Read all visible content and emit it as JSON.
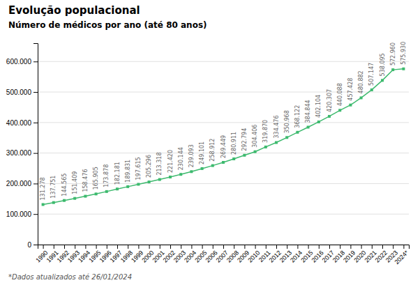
{
  "chart_data": {
    "type": "line",
    "title": "Evolução populacional",
    "subtitle": "Número de médicos por ano (até 80 anos)",
    "annotations": [
      "*Dados atualizados até 26/01/2024"
    ],
    "categories": [
      "1990",
      "1991",
      "1992",
      "1993",
      "1994",
      "1995",
      "1996",
      "1997",
      "1998",
      "1999",
      "2000",
      "2001",
      "2002",
      "2003",
      "2004",
      "2005",
      "2006",
      "2007",
      "2008",
      "2009",
      "2010",
      "2011",
      "2012",
      "2013",
      "2014",
      "2015",
      "2016",
      "2017",
      "2018",
      "2019",
      "2020",
      "2021",
      "2022",
      "2023",
      "2024*"
    ],
    "values": [
      131278,
      137751,
      144565,
      151409,
      158476,
      165905,
      173878,
      182181,
      189831,
      197615,
      205296,
      213318,
      221420,
      230144,
      239093,
      249101,
      258912,
      269449,
      280911,
      292794,
      304406,
      319870,
      334476,
      350968,
      368122,
      384844,
      402104,
      420307,
      440088,
      457428,
      480882,
      507147,
      538095,
      572960,
      575930
    ],
    "value_labels": [
      "131.278",
      "137.751",
      "144.565",
      "151.409",
      "158.476",
      "165.905",
      "173.878",
      "182.181",
      "189.831",
      "197.615",
      "205.296",
      "213.318",
      "221.420",
      "230.144",
      "239.093",
      "249.101",
      "258.912",
      "269.449",
      "280.911",
      "292.794",
      "304.406",
      "319.870",
      "334.476",
      "350.968",
      "368.122",
      "384.844",
      "402.104",
      "420.307",
      "440.088",
      "457.428",
      "480.882",
      "507.147",
      "538.095",
      "572.960",
      "575.930"
    ],
    "data_labels": true,
    "color": "#3dba6e",
    "marker": "square",
    "ylim": [
      0,
      660000
    ],
    "yticks": [
      0,
      {
        "value": 100000,
        "label": "100.000"
      },
      {
        "value": 200000,
        "label": "200.000"
      },
      {
        "value": 300000,
        "label": "300.000"
      },
      {
        "value": 400000,
        "label": "400.000"
      },
      {
        "value": 500000,
        "label": "500.000"
      },
      {
        "value": 600000,
        "label": "600.000"
      }
    ],
    "grid": true
  }
}
